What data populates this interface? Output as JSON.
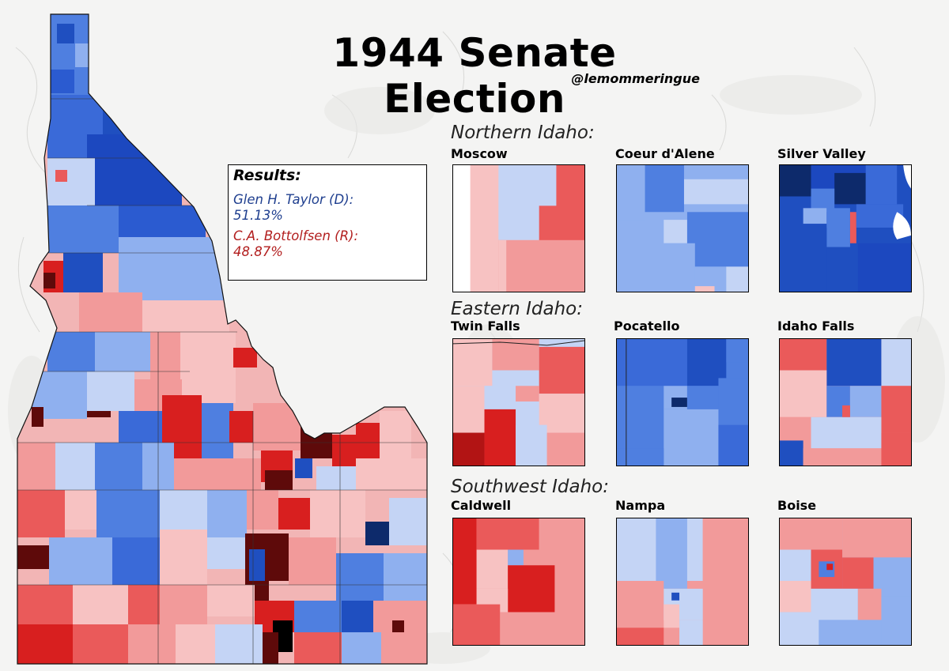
{
  "title": "1944 Senate Election",
  "handle": "@lemommeringue",
  "results": {
    "heading": "Results:",
    "democrat": {
      "name": "Glen H. Taylor (D):",
      "pct": "51.13%",
      "color": "#1f3f8f"
    },
    "republican": {
      "name": "C.A. Bottolfsen (R):",
      "pct": "48.87%",
      "color": "#b21e1e"
    }
  },
  "regions": [
    {
      "title": "Northern Idaho:",
      "insets": [
        "Moscow",
        "Coeur d'Alene",
        "Silver Valley"
      ]
    },
    {
      "title": "Eastern Idaho:",
      "insets": [
        "Twin Falls",
        "Pocatello",
        "Idaho Falls"
      ]
    },
    {
      "title": "Southwest Idaho:",
      "insets": [
        "Caldwell",
        "Nampa",
        "Boise"
      ]
    }
  ],
  "colors": {
    "dem_dark": "#0d2a6b",
    "dem": "#1f4fc0",
    "dem_mid": "#4f7fe0",
    "dem_light": "#8fb0ef",
    "dem_pale": "#c4d4f5",
    "rep_pale": "#f7c2c2",
    "rep_light": "#f29a9a",
    "rep_mid": "#ea5a5a",
    "rep": "#d81f1f",
    "rep_dark": "#5e0a0a"
  }
}
